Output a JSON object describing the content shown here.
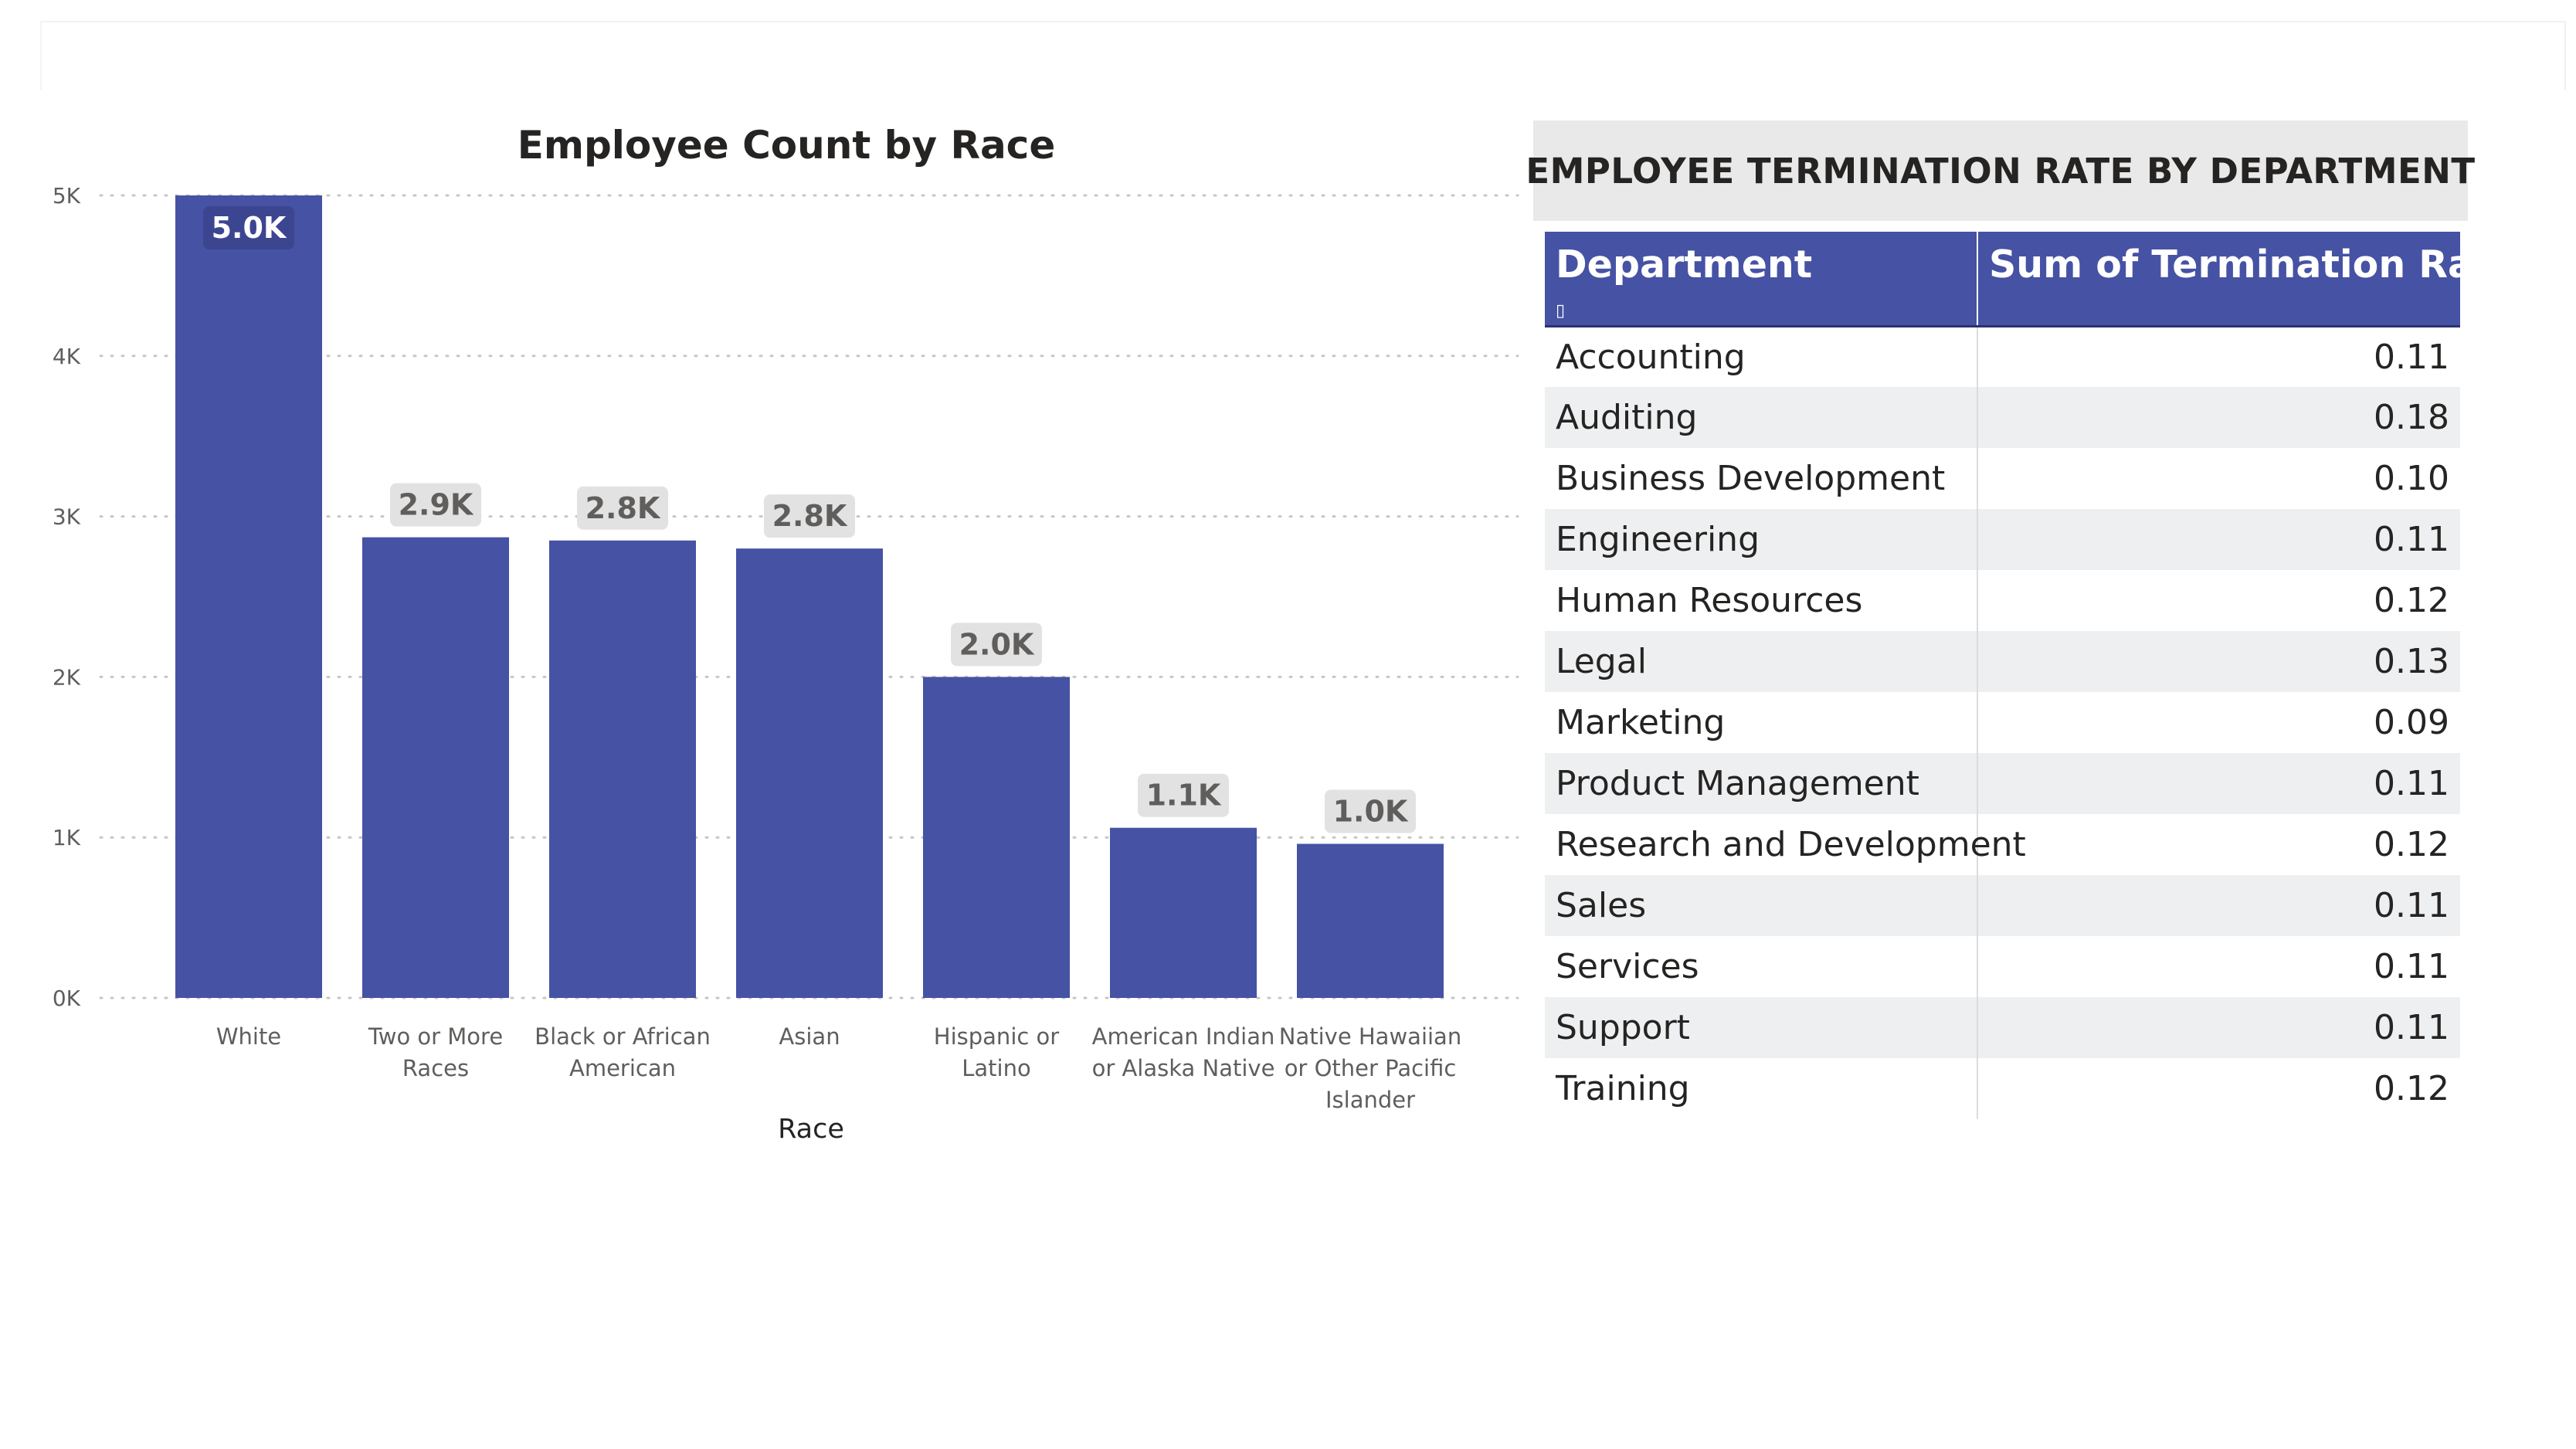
{
  "colors": {
    "bar": "#4652a3",
    "label_bg_outside": "#e2e2e2",
    "label_text_outside": "#605e5c",
    "label_bg_inside": "#3c4690",
    "label_text_inside": "#ffffff",
    "gridline": "#c8c6c4"
  },
  "chart_data": {
    "type": "bar",
    "title": "Employee Count by Race",
    "xlabel": "Race",
    "ylabel": "",
    "ylim": [
      0,
      5000
    ],
    "yticks": [
      0,
      1000,
      2000,
      3000,
      4000,
      5000
    ],
    "ytick_labels": [
      "0K",
      "1K",
      "2K",
      "3K",
      "4K",
      "5K"
    ],
    "grid": true,
    "categories": [
      "White",
      "Two or More Races",
      "Black or African American",
      "Asian",
      "Hispanic or Latino",
      "American Indian or Alaska Native",
      "Native Hawaiian or Other Pacific Islander"
    ],
    "category_lines": [
      [
        "White"
      ],
      [
        "Two or More",
        "Races"
      ],
      [
        "Black or African",
        "American"
      ],
      [
        "Asian"
      ],
      [
        "Hispanic or",
        "Latino"
      ],
      [
        "American Indian",
        "or Alaska Native"
      ],
      [
        "Native Hawaiian",
        "or Other Pacific",
        "Islander"
      ]
    ],
    "values": [
      5000,
      2870,
      2850,
      2800,
      2000,
      1060,
      960
    ],
    "data_labels": [
      "5.0K",
      "2.9K",
      "2.8K",
      "2.8K",
      "2.0K",
      "1.1K",
      "1.0K"
    ]
  },
  "table": {
    "title": "EMPLOYEE TERMINATION RATE BY DEPARTMENT",
    "columns": [
      "Department",
      "Sum of Termination Rate"
    ],
    "sort_glyph": "▯",
    "rows": [
      [
        "Accounting",
        "0.11"
      ],
      [
        "Auditing",
        "0.18"
      ],
      [
        "Business Development",
        "0.10"
      ],
      [
        "Engineering",
        "0.11"
      ],
      [
        "Human Resources",
        "0.12"
      ],
      [
        "Legal",
        "0.13"
      ],
      [
        "Marketing",
        "0.09"
      ],
      [
        "Product Management",
        "0.11"
      ],
      [
        "Research and Development",
        "0.12"
      ],
      [
        "Sales",
        "0.11"
      ],
      [
        "Services",
        "0.11"
      ],
      [
        "Support",
        "0.11"
      ],
      [
        "Training",
        "0.12"
      ]
    ]
  }
}
